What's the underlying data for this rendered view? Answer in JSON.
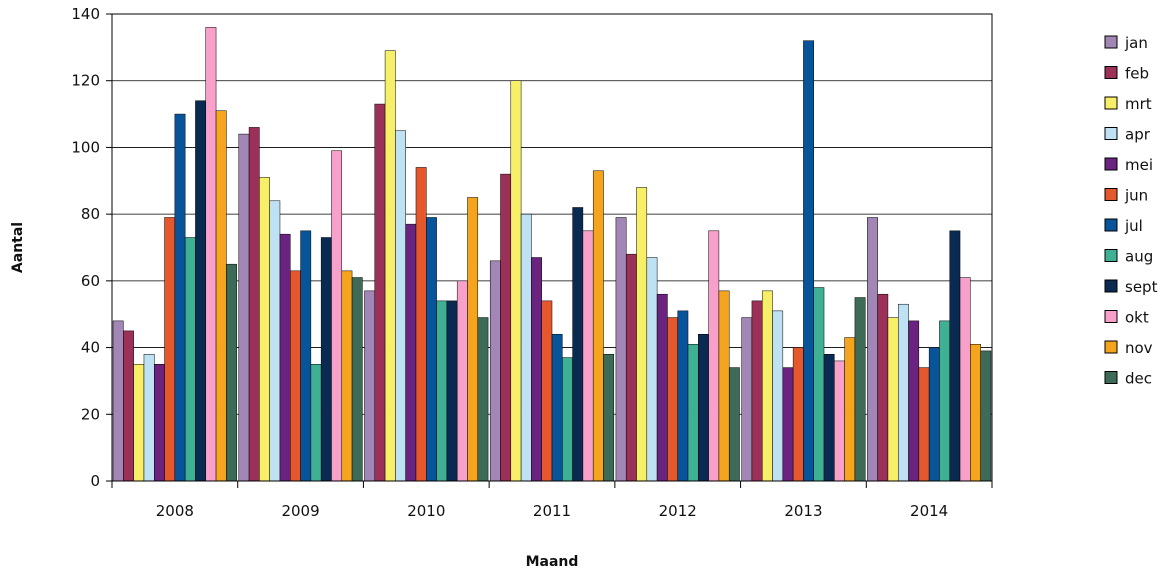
{
  "chart_data": {
    "type": "bar",
    "xlabel": "Maand",
    "ylabel": "Aantal",
    "ylim": [
      0,
      140
    ],
    "yticks": [
      0,
      20,
      40,
      60,
      80,
      100,
      120,
      140
    ],
    "grid": true,
    "legend_position": "right",
    "categories": [
      "2008",
      "2009",
      "2010",
      "2011",
      "2012",
      "2013",
      "2014"
    ],
    "series": [
      {
        "name": "jan",
        "color": "#a286b5",
        "values": [
          48,
          104,
          57,
          66,
          79,
          49,
          79
        ]
      },
      {
        "name": "feb",
        "color": "#9b3158",
        "values": [
          45,
          106,
          113,
          92,
          68,
          54,
          56
        ]
      },
      {
        "name": "mrt",
        "color": "#f7ef67",
        "values": [
          35,
          91,
          129,
          120,
          88,
          57,
          49
        ]
      },
      {
        "name": "apr",
        "color": "#bfe1f4",
        "values": [
          38,
          84,
          105,
          80,
          67,
          51,
          53
        ]
      },
      {
        "name": "mei",
        "color": "#6b2380",
        "values": [
          35,
          74,
          77,
          67,
          56,
          34,
          48
        ]
      },
      {
        "name": "jun",
        "color": "#e5582d",
        "values": [
          79,
          63,
          94,
          54,
          49,
          40,
          34
        ]
      },
      {
        "name": "jul",
        "color": "#08549b",
        "values": [
          110,
          75,
          79,
          44,
          51,
          132,
          40
        ]
      },
      {
        "name": "aug",
        "color": "#3fb093",
        "values": [
          73,
          35,
          54,
          37,
          41,
          58,
          48
        ]
      },
      {
        "name": "sept",
        "color": "#0a2a51",
        "values": [
          114,
          73,
          54,
          82,
          44,
          38,
          75
        ]
      },
      {
        "name": "okt",
        "color": "#f7a0c9",
        "values": [
          136,
          99,
          60,
          75,
          75,
          36,
          61
        ]
      },
      {
        "name": "nov",
        "color": "#f5a41e",
        "values": [
          111,
          63,
          85,
          93,
          57,
          43,
          41
        ]
      },
      {
        "name": "dec",
        "color": "#3e6b58",
        "values": [
          65,
          61,
          49,
          38,
          34,
          55,
          39
        ]
      }
    ]
  }
}
